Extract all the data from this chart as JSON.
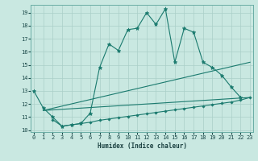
{
  "xlabel": "Humidex (Indice chaleur)",
  "bg_color": "#c9e8e1",
  "line_color": "#1a7a6e",
  "grid_color": "#aacfc8",
  "yticks": [
    10,
    11,
    12,
    13,
    14,
    15,
    16,
    17,
    18,
    19
  ],
  "xticks": [
    0,
    1,
    2,
    3,
    4,
    5,
    6,
    7,
    8,
    9,
    10,
    11,
    12,
    13,
    14,
    15,
    16,
    17,
    18,
    19,
    20,
    21,
    22,
    23
  ],
  "curve1_x": [
    0,
    1,
    2,
    3,
    4,
    5,
    6,
    7,
    8,
    9,
    10,
    11,
    12,
    13,
    14,
    15,
    16,
    17,
    18,
    19,
    20,
    21,
    22
  ],
  "curve1_y": [
    13.0,
    11.7,
    11.0,
    10.3,
    10.4,
    10.5,
    11.3,
    14.8,
    16.6,
    16.1,
    17.7,
    17.8,
    19.0,
    18.1,
    19.3,
    15.2,
    17.8,
    17.5,
    15.2,
    14.8,
    14.2,
    13.3,
    12.5
  ],
  "curve2_x": [
    2,
    3,
    4,
    5,
    6,
    7,
    8,
    9,
    10,
    11,
    12,
    13,
    14,
    15,
    16,
    17,
    18,
    19,
    20,
    21,
    22,
    23
  ],
  "curve2_y": [
    10.8,
    10.3,
    10.4,
    10.5,
    10.6,
    10.75,
    10.85,
    10.95,
    11.05,
    11.15,
    11.25,
    11.35,
    11.45,
    11.55,
    11.65,
    11.75,
    11.85,
    11.95,
    12.05,
    12.15,
    12.3,
    12.5
  ],
  "line3_x": [
    1,
    23
  ],
  "line3_y": [
    11.5,
    15.2
  ],
  "line4_x": [
    1,
    23
  ],
  "line4_y": [
    11.5,
    12.5
  ]
}
